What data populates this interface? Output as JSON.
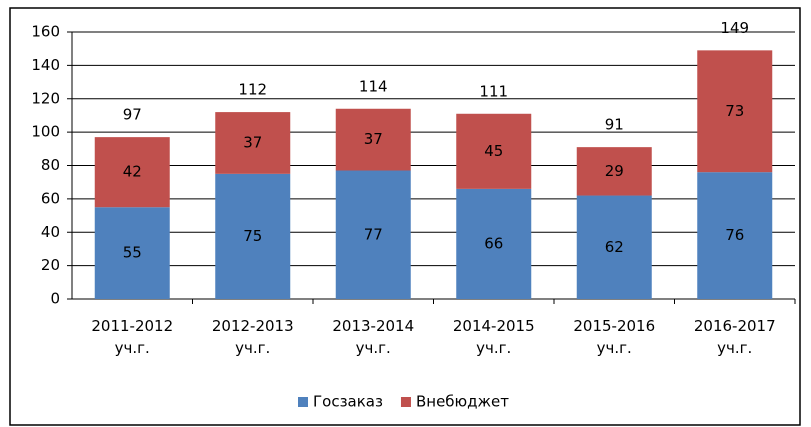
{
  "chart_data": {
    "type": "stacked_bar",
    "categories": [
      "2011-2012 уч.г.",
      "2012-2013 уч.г.",
      "2013-2014 уч.г.",
      "2014-2015 уч.г.",
      "2015-2016 уч.г.",
      "2016-2017 уч.г."
    ],
    "series": [
      {
        "name": "Госзаказ",
        "color": "#4f81bd",
        "values": [
          55,
          75,
          77,
          66,
          62,
          76
        ]
      },
      {
        "name": "Внебюджет",
        "color": "#c0504d",
        "values": [
          42,
          37,
          37,
          45,
          29,
          73
        ]
      }
    ],
    "totals": [
      97,
      112,
      114,
      111,
      91,
      149
    ],
    "ylim": [
      0,
      160
    ],
    "yticks": [
      0,
      20,
      40,
      60,
      80,
      100,
      120,
      140,
      160
    ],
    "grid": true,
    "legend": "bottom"
  }
}
